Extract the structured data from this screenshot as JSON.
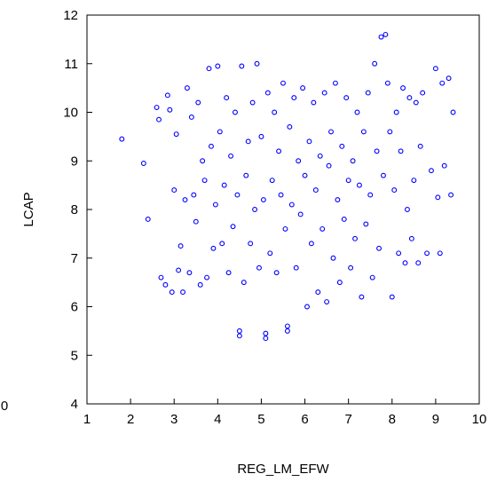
{
  "chart_data": {
    "type": "scatter",
    "title": "",
    "xlabel": "REG_LM_EFW",
    "ylabel": "LCAP",
    "xlim": [
      1,
      10
    ],
    "ylim": [
      4,
      12
    ],
    "x_ticks": [
      "1",
      "2",
      "3",
      "4",
      "5",
      "6",
      "7",
      "8",
      "9",
      "10"
    ],
    "y_ticks": [
      "4",
      "5",
      "6",
      "7",
      "8",
      "9",
      "10",
      "11",
      "12"
    ],
    "stray_label": "0",
    "marker": "open-circle",
    "color": "#0000ff",
    "grid": false,
    "series": [
      {
        "points": [
          [
            1.8,
            9.45
          ],
          [
            2.3,
            8.95
          ],
          [
            2.4,
            7.8
          ],
          [
            2.6,
            10.1
          ],
          [
            2.65,
            9.85
          ],
          [
            2.7,
            6.6
          ],
          [
            2.8,
            6.45
          ],
          [
            2.85,
            10.35
          ],
          [
            2.9,
            10.05
          ],
          [
            2.95,
            6.3
          ],
          [
            3.0,
            8.4
          ],
          [
            3.05,
            9.55
          ],
          [
            3.1,
            6.75
          ],
          [
            3.15,
            7.25
          ],
          [
            3.2,
            6.3
          ],
          [
            3.25,
            8.2
          ],
          [
            3.3,
            10.5
          ],
          [
            3.35,
            6.7
          ],
          [
            3.4,
            9.9
          ],
          [
            3.45,
            8.3
          ],
          [
            3.5,
            7.75
          ],
          [
            3.55,
            10.2
          ],
          [
            3.6,
            6.45
          ],
          [
            3.65,
            9.0
          ],
          [
            3.7,
            8.6
          ],
          [
            3.75,
            6.6
          ],
          [
            3.8,
            10.9
          ],
          [
            3.85,
            9.3
          ],
          [
            3.9,
            7.2
          ],
          [
            3.95,
            8.1
          ],
          [
            4.0,
            10.95
          ],
          [
            4.05,
            9.6
          ],
          [
            4.1,
            7.3
          ],
          [
            4.15,
            8.5
          ],
          [
            4.2,
            10.3
          ],
          [
            4.25,
            6.7
          ],
          [
            4.3,
            9.1
          ],
          [
            4.35,
            7.65
          ],
          [
            4.4,
            10.0
          ],
          [
            4.45,
            8.3
          ],
          [
            4.5,
            5.5
          ],
          [
            4.5,
            5.4
          ],
          [
            4.55,
            10.95
          ],
          [
            4.6,
            6.5
          ],
          [
            4.65,
            8.7
          ],
          [
            4.7,
            9.4
          ],
          [
            4.75,
            7.3
          ],
          [
            4.8,
            10.2
          ],
          [
            4.85,
            8.0
          ],
          [
            4.9,
            11.0
          ],
          [
            4.95,
            6.8
          ],
          [
            5.0,
            9.5
          ],
          [
            5.05,
            8.2
          ],
          [
            5.1,
            5.35
          ],
          [
            5.1,
            5.45
          ],
          [
            5.15,
            10.4
          ],
          [
            5.2,
            7.1
          ],
          [
            5.25,
            8.6
          ],
          [
            5.3,
            10.0
          ],
          [
            5.35,
            6.7
          ],
          [
            5.4,
            9.2
          ],
          [
            5.45,
            8.3
          ],
          [
            5.5,
            10.6
          ],
          [
            5.55,
            7.6
          ],
          [
            5.6,
            5.5
          ],
          [
            5.6,
            5.6
          ],
          [
            5.65,
            9.7
          ],
          [
            5.7,
            8.1
          ],
          [
            5.75,
            10.3
          ],
          [
            5.8,
            6.8
          ],
          [
            5.85,
            9.0
          ],
          [
            5.9,
            7.9
          ],
          [
            5.95,
            10.5
          ],
          [
            6.0,
            8.7
          ],
          [
            6.05,
            6.0
          ],
          [
            6.1,
            9.4
          ],
          [
            6.15,
            7.3
          ],
          [
            6.2,
            10.2
          ],
          [
            6.25,
            8.4
          ],
          [
            6.3,
            6.3
          ],
          [
            6.35,
            9.1
          ],
          [
            6.4,
            7.6
          ],
          [
            6.45,
            10.4
          ],
          [
            6.5,
            6.1
          ],
          [
            6.55,
            8.9
          ],
          [
            6.6,
            9.6
          ],
          [
            6.65,
            7.0
          ],
          [
            6.7,
            10.6
          ],
          [
            6.75,
            8.2
          ],
          [
            6.8,
            6.5
          ],
          [
            6.85,
            9.3
          ],
          [
            6.9,
            7.8
          ],
          [
            6.95,
            10.3
          ],
          [
            7.0,
            8.6
          ],
          [
            7.05,
            6.8
          ],
          [
            7.1,
            9.0
          ],
          [
            7.15,
            7.4
          ],
          [
            7.2,
            10.0
          ],
          [
            7.25,
            8.5
          ],
          [
            7.3,
            6.2
          ],
          [
            7.35,
            9.6
          ],
          [
            7.4,
            7.7
          ],
          [
            7.45,
            10.4
          ],
          [
            7.5,
            8.3
          ],
          [
            7.55,
            6.6
          ],
          [
            7.6,
            11.0
          ],
          [
            7.65,
            9.2
          ],
          [
            7.7,
            7.2
          ],
          [
            7.75,
            11.55
          ],
          [
            7.8,
            8.7
          ],
          [
            7.85,
            11.6
          ],
          [
            7.9,
            10.6
          ],
          [
            7.95,
            9.6
          ],
          [
            8.0,
            6.2
          ],
          [
            8.05,
            8.4
          ],
          [
            8.1,
            10.0
          ],
          [
            8.15,
            7.1
          ],
          [
            8.2,
            9.2
          ],
          [
            8.25,
            10.5
          ],
          [
            8.3,
            6.9
          ],
          [
            8.35,
            8.0
          ],
          [
            8.4,
            10.3
          ],
          [
            8.45,
            7.4
          ],
          [
            8.5,
            8.6
          ],
          [
            8.55,
            10.2
          ],
          [
            8.6,
            6.9
          ],
          [
            8.65,
            9.3
          ],
          [
            8.7,
            10.4
          ],
          [
            8.8,
            7.1
          ],
          [
            8.9,
            8.8
          ],
          [
            9.0,
            10.9
          ],
          [
            9.05,
            8.25
          ],
          [
            9.1,
            7.1
          ],
          [
            9.15,
            10.6
          ],
          [
            9.2,
            8.9
          ],
          [
            9.3,
            10.7
          ],
          [
            9.35,
            8.3
          ],
          [
            9.4,
            10.0
          ]
        ]
      }
    ]
  }
}
